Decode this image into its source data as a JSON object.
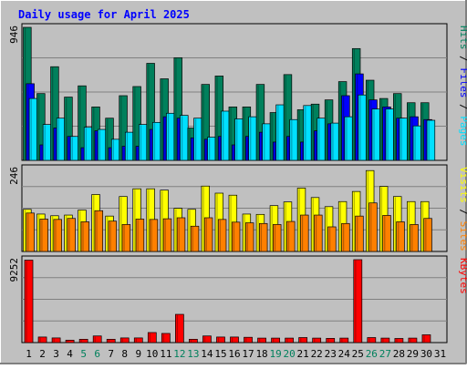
{
  "chart_data": [
    {
      "type": "bar",
      "panel": "hits-files-pages",
      "title": "Daily usage for April 2025",
      "y_max_label": "946",
      "side_labels": [
        "Pages",
        "Files",
        "Hits"
      ],
      "categories": [
        "1",
        "2",
        "3",
        "4",
        "5",
        "6",
        "7",
        "8",
        "9",
        "10",
        "11",
        "12",
        "13",
        "14",
        "15",
        "16",
        "17",
        "18",
        "19",
        "20",
        "21",
        "22",
        "23",
        "24",
        "25",
        "26",
        "27",
        "28",
        "29",
        "30",
        "31"
      ],
      "ylim": [
        0,
        946
      ],
      "grid": true,
      "series": [
        {
          "name": "Hits",
          "color": "#00805c",
          "values": [
            946,
            475,
            666,
            450,
            530,
            380,
            300,
            460,
            525,
            690,
            580,
            730,
            230,
            540,
            600,
            380,
            380,
            540,
            340,
            610,
            360,
            400,
            430,
            560,
            795,
            570,
            440,
            475,
            410,
            410,
            0
          ]
        },
        {
          "name": "Files",
          "color": "#0000ff",
          "values": [
            545,
            110,
            230,
            170,
            90,
            210,
            90,
            100,
            100,
            220,
            310,
            300,
            160,
            150,
            170,
            110,
            170,
            200,
            130,
            170,
            130,
            210,
            260,
            460,
            615,
            430,
            380,
            300,
            310,
            290,
            0
          ]
        },
        {
          "name": "Pages",
          "color": "#00e0ff",
          "values": [
            440,
            255,
            300,
            170,
            235,
            220,
            150,
            200,
            255,
            270,
            335,
            320,
            300,
            165,
            350,
            295,
            310,
            260,
            395,
            290,
            390,
            300,
            265,
            310,
            465,
            365,
            365,
            300,
            245,
            285,
            0
          ]
        }
      ]
    },
    {
      "type": "bar",
      "panel": "visits-sites",
      "y_max_label": "246",
      "side_labels": [
        "Sites",
        "Visits"
      ],
      "categories": [
        "1",
        "2",
        "3",
        "4",
        "5",
        "6",
        "7",
        "8",
        "9",
        "10",
        "11",
        "12",
        "13",
        "14",
        "15",
        "16",
        "17",
        "18",
        "19",
        "20",
        "21",
        "22",
        "23",
        "24",
        "25",
        "26",
        "27",
        "28",
        "29",
        "30",
        "31"
      ],
      "ylim": [
        0,
        246
      ],
      "grid": true,
      "series": [
        {
          "name": "Visits",
          "color": "#ffff00",
          "values": [
            125,
            111,
            106,
            108,
            123,
            169,
            105,
            163,
            186,
            186,
            182,
            128,
            125,
            194,
            173,
            167,
            111,
            110,
            136,
            147,
            188,
            160,
            133,
            148,
            178,
            240,
            193,
            163,
            148,
            148,
            0
          ]
        },
        {
          "name": "Sites",
          "color": "#ff8000",
          "values": [
            114,
            96,
            95,
            98,
            88,
            121,
            90,
            80,
            96,
            95,
            97,
            100,
            75,
            100,
            95,
            87,
            85,
            83,
            80,
            89,
            108,
            108,
            73,
            83,
            105,
            144,
            107,
            88,
            80,
            98,
            0
          ]
        }
      ]
    },
    {
      "type": "bar",
      "panel": "kbytes",
      "y_max_label": "9252",
      "side_labels": [
        "KBytes"
      ],
      "categories": [
        "1",
        "2",
        "3",
        "4",
        "5",
        "6",
        "7",
        "8",
        "9",
        "10",
        "11",
        "12",
        "13",
        "14",
        "15",
        "16",
        "17",
        "18",
        "19",
        "20",
        "21",
        "22",
        "23",
        "24",
        "25",
        "26",
        "27",
        "28",
        "29",
        "30",
        "31"
      ],
      "ylim": [
        0,
        9252
      ],
      "grid": true,
      "series": [
        {
          "name": "KBytes",
          "color": "#ff0000",
          "values": [
            9200,
            620,
            520,
            270,
            370,
            740,
            370,
            520,
            520,
            1120,
            1020,
            3150,
            370,
            740,
            620,
            620,
            590,
            500,
            500,
            500,
            560,
            500,
            470,
            500,
            9252,
            560,
            500,
            460,
            500,
            870,
            0
          ]
        }
      ]
    }
  ],
  "colors": {
    "panel_bg": "#c0c0c0",
    "title": "#0000ff",
    "weekend_label": "#00805c",
    "label": "#000000"
  },
  "weekend_days": [
    5,
    6,
    12,
    13,
    19,
    20,
    26,
    27
  ]
}
